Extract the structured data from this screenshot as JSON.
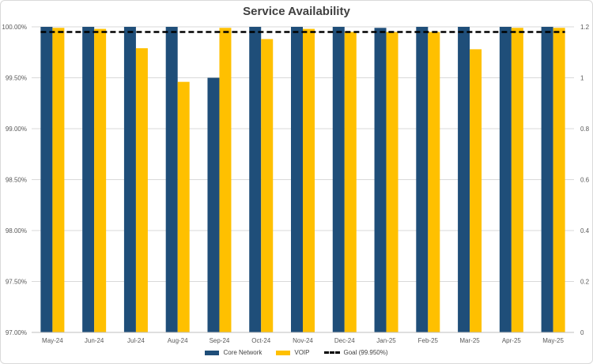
{
  "chart_data": {
    "type": "bar",
    "title": "Service Availability",
    "categories": [
      "May-24",
      "Jun-24",
      "Jul-24",
      "Aug-24",
      "Sep-24",
      "Oct-24",
      "Nov-24",
      "Dec-24",
      "Jan-25",
      "Feb-25",
      "Mar-25",
      "Apr-25",
      "May-25"
    ],
    "series": [
      {
        "name": "Core Network",
        "values": [
          100.0,
          100.0,
          100.0,
          100.0,
          99.5,
          100.0,
          100.0,
          100.0,
          99.99,
          100.0,
          100.0,
          100.0,
          100.0
        ]
      },
      {
        "name": "VOIP",
        "values": [
          99.99,
          99.98,
          99.79,
          99.46,
          99.99,
          99.88,
          99.98,
          99.95,
          99.95,
          99.95,
          99.78,
          99.99,
          99.99
        ]
      }
    ],
    "goal": {
      "name": "Goal (99.950%)",
      "value": 99.95
    },
    "y_ticks": [
      "97.00%",
      "97.50%",
      "98.00%",
      "98.50%",
      "99.00%",
      "99.50%",
      "100.00%"
    ],
    "ylim": [
      97.0,
      100.0
    ],
    "y2_ticks": [
      "0",
      "0.2",
      "0.4",
      "0.6",
      "0.8",
      "1",
      "1.2"
    ],
    "y2lim": [
      0,
      1.2
    ],
    "grid": true,
    "legend_position": "bottom",
    "colors": {
      "core": "#1f4e79",
      "voip": "#ffc000",
      "goal": "#000000",
      "grid": "#d9d9d9",
      "text": "#595959"
    }
  }
}
